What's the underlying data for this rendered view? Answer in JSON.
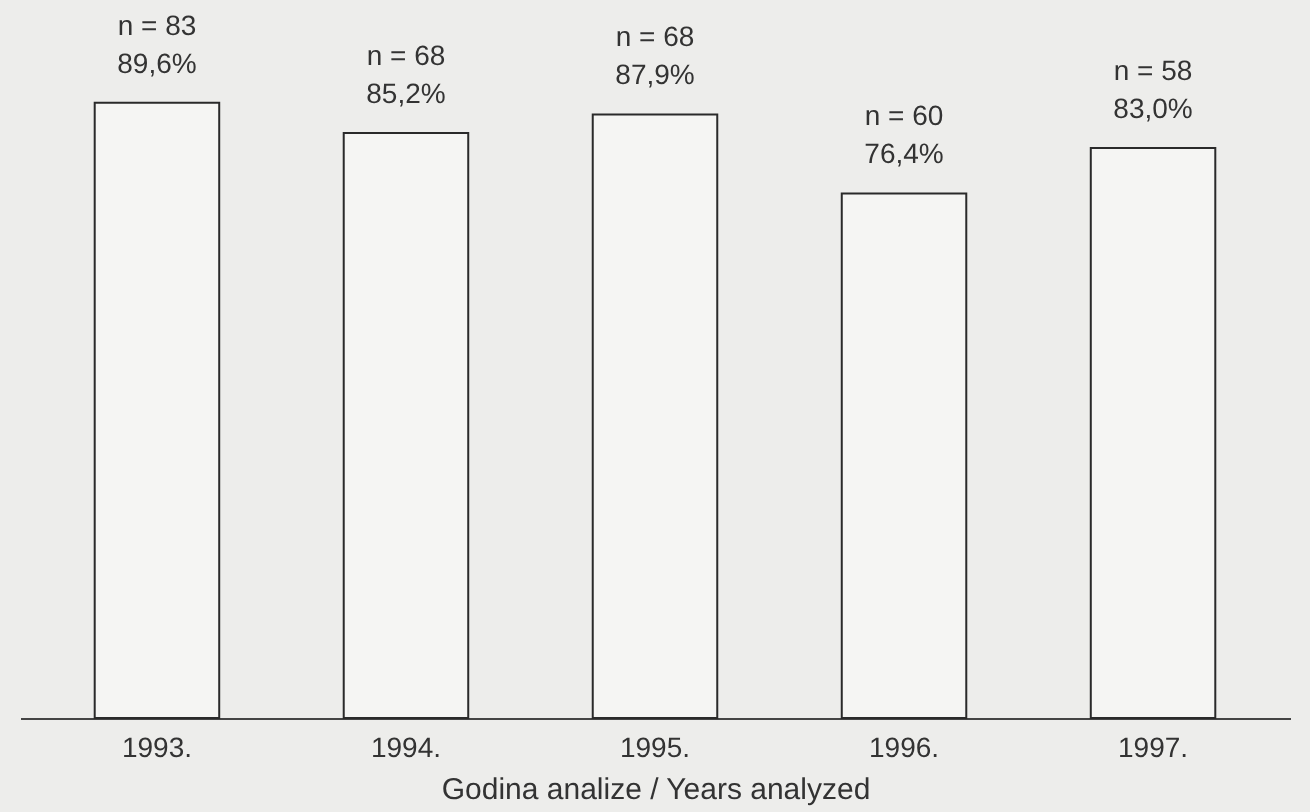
{
  "chart_data": {
    "type": "bar",
    "xlabel": "Godina analize / Years analyzed",
    "categories": [
      "1993.",
      "1994.",
      "1995.",
      "1996.",
      "1997."
    ],
    "values": [
      89.6,
      85.2,
      87.9,
      76.4,
      83.0
    ],
    "color": "#f5f5f3",
    "value_labels": [
      "89,6%",
      "85,2%",
      "87,9%",
      "76,4%",
      "83,0%"
    ],
    "annotations": [
      {
        "text": "n = 83",
        "x": "1993.",
        "y": 89.6
      },
      {
        "text": "n = 68",
        "x": "1994.",
        "y": 85.2
      },
      {
        "text": "n = 68",
        "x": "1995.",
        "y": 87.9
      },
      {
        "text": "n = 60",
        "x": "1996.",
        "y": 76.4
      },
      {
        "text": "n = 58",
        "x": "1997.",
        "y": 83.0
      }
    ],
    "tick_labels": "x",
    "grid": false
  }
}
